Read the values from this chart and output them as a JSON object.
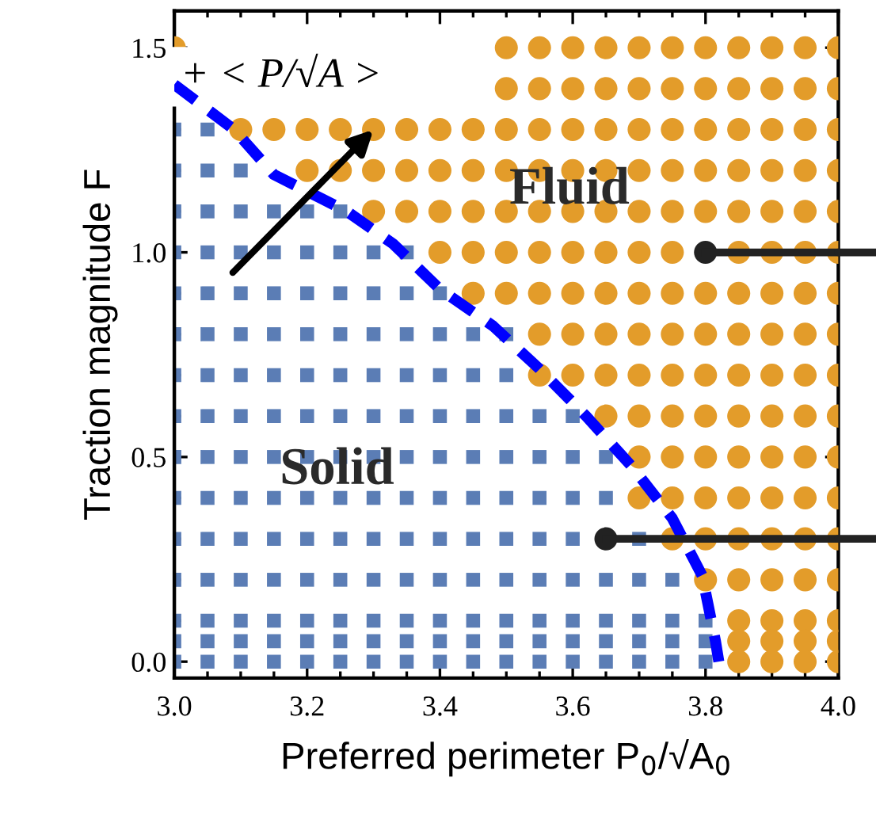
{
  "chart_data": {
    "type": "scatter",
    "xlabel": "Preferred perimeter P$_{0}$/√A$_{0}$",
    "ylabel": "Traction magnitude F",
    "xlim": [
      3.0,
      4.0
    ],
    "ylim": [
      -0.04,
      1.59
    ],
    "xticks": [
      {
        "value": 3.0,
        "label": "3.0"
      },
      3.2,
      3.4,
      3.6,
      3.8,
      {
        "value": 4.0,
        "label": "4.0"
      }
    ],
    "yticks": [
      {
        "value": 0.0,
        "label": "0.0"
      },
      0.5,
      {
        "value": 1.0,
        "label": "1.0"
      },
      1.5
    ],
    "annotations": [
      {
        "text": "+ < P/√A >",
        "x": 3.3,
        "y": 1.3
      },
      "Fluid",
      "Solid"
    ],
    "series": [
      {
        "marker": "square",
        "color": "#5b7db5",
        "x": [
          3.0,
          3.05,
          3.0,
          3.05,
          3.1,
          3.0,
          3.05,
          3.1,
          3.15,
          3.2,
          3.25,
          3.0,
          3.05,
          3.1,
          3.15,
          3.2,
          3.25,
          3.3,
          3.35,
          3.0,
          3.05,
          3.1,
          3.15,
          3.2,
          3.25,
          3.3,
          3.35,
          3.4,
          3.0,
          3.05,
          3.1,
          3.15,
          3.2,
          3.25,
          3.3,
          3.35,
          3.4,
          3.45,
          3.5,
          3.0,
          3.05,
          3.1,
          3.15,
          3.2,
          3.25,
          3.3,
          3.35,
          3.4,
          3.45,
          3.5,
          3.0,
          3.05,
          3.1,
          3.15,
          3.2,
          3.25,
          3.3,
          3.35,
          3.4,
          3.45,
          3.5,
          3.55,
          3.6,
          3.0,
          3.05,
          3.1,
          3.15,
          3.2,
          3.25,
          3.3,
          3.35,
          3.4,
          3.45,
          3.5,
          3.55,
          3.6,
          3.65,
          3.0,
          3.05,
          3.1,
          3.15,
          3.2,
          3.25,
          3.3,
          3.35,
          3.4,
          3.45,
          3.5,
          3.55,
          3.6,
          3.65,
          3.0,
          3.05,
          3.1,
          3.15,
          3.2,
          3.25,
          3.3,
          3.35,
          3.4,
          3.45,
          3.5,
          3.55,
          3.6,
          3.7,
          3.0,
          3.05,
          3.1,
          3.15,
          3.2,
          3.25,
          3.3,
          3.35,
          3.4,
          3.45,
          3.5,
          3.55,
          3.6,
          3.65,
          3.7,
          3.75,
          3.0,
          3.05,
          3.1,
          3.15,
          3.2,
          3.25,
          3.3,
          3.35,
          3.4,
          3.45,
          3.5,
          3.55,
          3.6,
          3.65,
          3.7,
          3.75,
          3.8,
          3.0,
          3.05,
          3.1,
          3.15,
          3.2,
          3.25,
          3.3,
          3.35,
          3.4,
          3.45,
          3.5,
          3.55,
          3.6,
          3.65,
          3.7,
          3.75,
          3.8,
          3.0,
          3.05,
          3.1,
          3.15,
          3.2,
          3.25,
          3.3,
          3.35,
          3.4,
          3.45,
          3.5,
          3.55,
          3.6,
          3.65,
          3.7,
          3.75,
          3.8
        ],
        "values": [
          1.3,
          1.3,
          1.2,
          1.2,
          1.2,
          1.1,
          1.1,
          1.1,
          1.1,
          1.1,
          1.1,
          1.0,
          1.0,
          1.0,
          1.0,
          1.0,
          1.0,
          1.0,
          1.0,
          0.9,
          0.9,
          0.9,
          0.9,
          0.9,
          0.9,
          0.9,
          0.9,
          0.9,
          0.8,
          0.8,
          0.8,
          0.8,
          0.8,
          0.8,
          0.8,
          0.8,
          0.8,
          0.8,
          0.8,
          0.7,
          0.7,
          0.7,
          0.7,
          0.7,
          0.7,
          0.7,
          0.7,
          0.7,
          0.7,
          0.7,
          0.6,
          0.6,
          0.6,
          0.6,
          0.6,
          0.6,
          0.6,
          0.6,
          0.6,
          0.6,
          0.6,
          0.6,
          0.6,
          0.5,
          0.5,
          0.5,
          0.5,
          0.5,
          0.5,
          0.5,
          0.5,
          0.5,
          0.5,
          0.5,
          0.5,
          0.5,
          0.5,
          0.4,
          0.4,
          0.4,
          0.4,
          0.4,
          0.4,
          0.4,
          0.4,
          0.4,
          0.4,
          0.4,
          0.4,
          0.4,
          0.4,
          0.3,
          0.3,
          0.3,
          0.3,
          0.3,
          0.3,
          0.3,
          0.3,
          0.3,
          0.3,
          0.3,
          0.3,
          0.3,
          0.3,
          0.2,
          0.2,
          0.2,
          0.2,
          0.2,
          0.2,
          0.2,
          0.2,
          0.2,
          0.2,
          0.2,
          0.2,
          0.2,
          0.2,
          0.2,
          0.2,
          0.1,
          0.1,
          0.1,
          0.1,
          0.1,
          0.1,
          0.1,
          0.1,
          0.1,
          0.1,
          0.1,
          0.1,
          0.1,
          0.1,
          0.1,
          0.1,
          0.1,
          0.05,
          0.05,
          0.05,
          0.05,
          0.05,
          0.05,
          0.05,
          0.05,
          0.05,
          0.05,
          0.05,
          0.05,
          0.05,
          0.05,
          0.05,
          0.05,
          0.05,
          0.0,
          0.0,
          0.0,
          0.0,
          0.0,
          0.0,
          0.0,
          0.0,
          0.0,
          0.0,
          0.0,
          0.0,
          0.0,
          0.0,
          0.0,
          0.0,
          0.0
        ]
      },
      {
        "marker": "circle",
        "color": "#e39c2a",
        "x": [
          3.0,
          3.5,
          3.55,
          3.6,
          3.65,
          3.7,
          3.75,
          3.8,
          3.85,
          3.9,
          3.95,
          4.0,
          3.5,
          3.55,
          3.6,
          3.65,
          3.7,
          3.75,
          3.8,
          3.85,
          3.9,
          3.95,
          4.0,
          3.1,
          3.15,
          3.2,
          3.25,
          3.3,
          3.35,
          3.4,
          3.45,
          3.5,
          3.55,
          3.6,
          3.65,
          3.7,
          3.75,
          3.8,
          3.85,
          3.9,
          3.95,
          4.0,
          3.2,
          3.25,
          3.3,
          3.35,
          3.4,
          3.45,
          3.5,
          3.55,
          3.6,
          3.65,
          3.7,
          3.75,
          3.8,
          3.85,
          3.9,
          3.95,
          4.0,
          3.3,
          3.35,
          3.4,
          3.45,
          3.5,
          3.55,
          3.6,
          3.65,
          3.7,
          3.75,
          3.8,
          3.85,
          3.9,
          3.95,
          4.0,
          3.4,
          3.45,
          3.5,
          3.55,
          3.6,
          3.65,
          3.7,
          3.75,
          3.85,
          3.9,
          3.95,
          4.0,
          3.45,
          3.5,
          3.55,
          3.6,
          3.65,
          3.7,
          3.75,
          3.8,
          3.85,
          3.9,
          3.95,
          4.0,
          3.55,
          3.6,
          3.65,
          3.7,
          3.75,
          3.8,
          3.85,
          3.9,
          3.95,
          4.0,
          3.55,
          3.6,
          3.65,
          3.7,
          3.75,
          3.8,
          3.85,
          3.9,
          3.95,
          4.0,
          3.65,
          3.7,
          3.75,
          3.8,
          3.85,
          3.9,
          3.95,
          4.0,
          3.7,
          3.75,
          3.8,
          3.85,
          3.9,
          3.95,
          4.0,
          3.7,
          3.75,
          3.8,
          3.85,
          3.9,
          3.95,
          4.0,
          3.75,
          3.8,
          3.85,
          3.9,
          3.95,
          4.0,
          3.8,
          3.85,
          3.9,
          3.95,
          4.0,
          3.85,
          3.9,
          3.95,
          4.0,
          3.85,
          3.9,
          3.95,
          4.0,
          3.85,
          3.9,
          3.95,
          4.0
        ],
        "values": [
          1.5,
          1.5,
          1.5,
          1.5,
          1.5,
          1.5,
          1.5,
          1.5,
          1.5,
          1.5,
          1.5,
          1.5,
          1.4,
          1.4,
          1.4,
          1.4,
          1.4,
          1.4,
          1.4,
          1.4,
          1.4,
          1.4,
          1.4,
          1.3,
          1.3,
          1.3,
          1.3,
          1.3,
          1.3,
          1.3,
          1.3,
          1.3,
          1.3,
          1.3,
          1.3,
          1.3,
          1.3,
          1.3,
          1.3,
          1.3,
          1.3,
          1.3,
          1.2,
          1.2,
          1.2,
          1.2,
          1.2,
          1.2,
          1.2,
          1.2,
          1.2,
          1.2,
          1.2,
          1.2,
          1.2,
          1.2,
          1.2,
          1.2,
          1.2,
          1.1,
          1.1,
          1.1,
          1.1,
          1.1,
          1.1,
          1.1,
          1.1,
          1.1,
          1.1,
          1.1,
          1.1,
          1.1,
          1.1,
          1.1,
          1.0,
          1.0,
          1.0,
          1.0,
          1.0,
          1.0,
          1.0,
          1.0,
          1.0,
          1.0,
          1.0,
          1.0,
          0.9,
          0.9,
          0.9,
          0.9,
          0.9,
          0.9,
          0.9,
          0.9,
          0.9,
          0.9,
          0.9,
          0.9,
          0.8,
          0.8,
          0.8,
          0.8,
          0.8,
          0.8,
          0.8,
          0.8,
          0.8,
          0.8,
          0.7,
          0.7,
          0.7,
          0.7,
          0.7,
          0.7,
          0.7,
          0.7,
          0.7,
          0.7,
          0.6,
          0.6,
          0.6,
          0.6,
          0.6,
          0.6,
          0.6,
          0.6,
          0.5,
          0.5,
          0.5,
          0.5,
          0.5,
          0.5,
          0.5,
          0.4,
          0.4,
          0.4,
          0.4,
          0.4,
          0.4,
          0.4,
          0.3,
          0.3,
          0.3,
          0.3,
          0.3,
          0.3,
          0.2,
          0.2,
          0.2,
          0.2,
          0.2,
          0.1,
          0.1,
          0.1,
          0.1,
          0.05,
          0.05,
          0.05,
          0.05,
          0.0,
          0.0,
          0.0,
          0.0
        ]
      },
      {
        "type": "line",
        "line_style": "dashed",
        "color": "#0000ff",
        "x": [
          3.0,
          3.09,
          3.15,
          3.26,
          3.33,
          3.4,
          3.48,
          3.55,
          3.62,
          3.69,
          3.75,
          3.795,
          3.815,
          3.82
        ],
        "values": [
          1.41,
          1.3,
          1.19,
          1.1,
          1.02,
          0.91,
          0.82,
          0.715,
          0.6,
          0.475,
          0.35,
          0.21,
          0.05,
          0.0
        ]
      },
      {
        "marker": "circle",
        "color": "#222222",
        "x": [
          3.8,
          3.65
        ],
        "values": [
          1.0,
          0.3
        ]
      },
      {
        "type": "line",
        "line_style": "solid",
        "color": "#222222",
        "x": [
          3.8,
          4.0
        ],
        "values": [
          1.0,
          1.0
        ]
      },
      {
        "type": "line",
        "line_style": "solid",
        "color": "#222222",
        "x": [
          3.65,
          4.0
        ],
        "values": [
          0.3,
          0.3
        ]
      }
    ]
  }
}
